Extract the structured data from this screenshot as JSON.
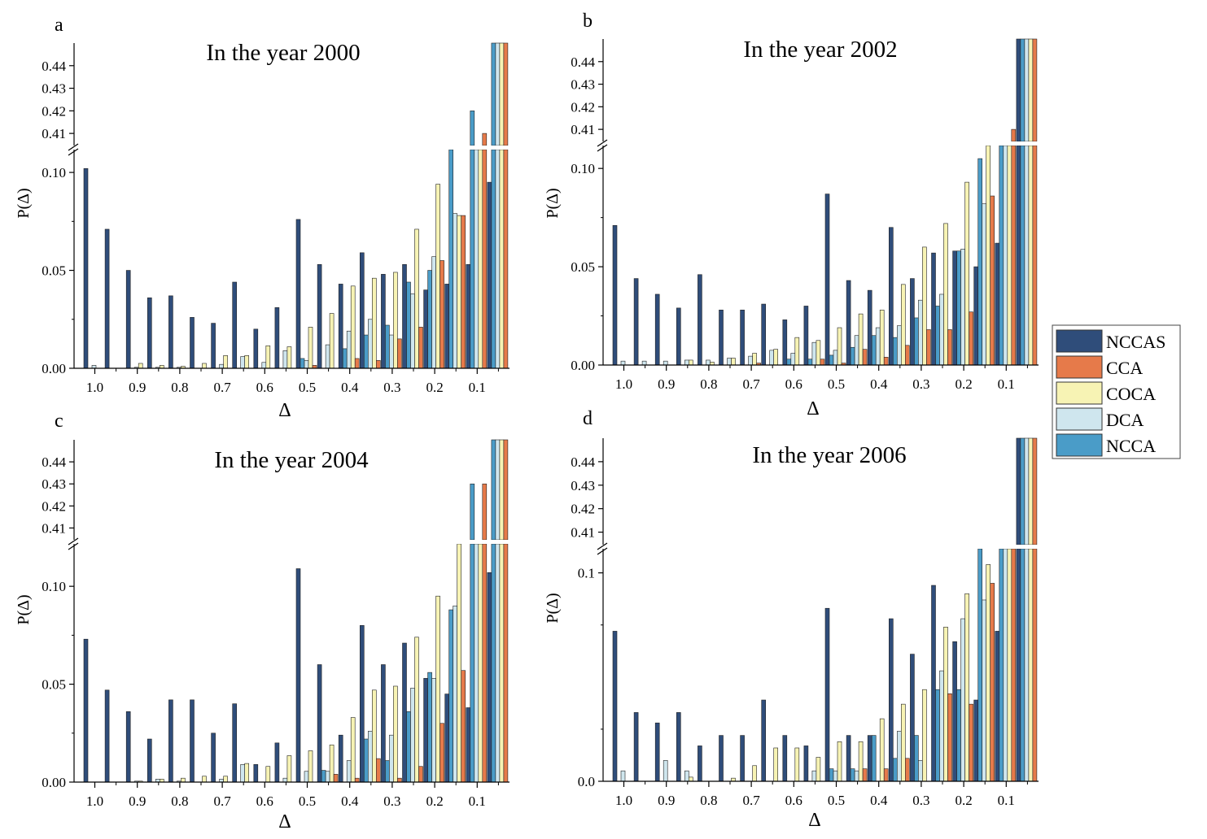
{
  "colors": {
    "NCCAS": "#2f4d7a",
    "CCA": "#e67a4a",
    "COCA": "#f7f3b4",
    "DCA": "#cfe6ee",
    "NCCA": "#4a9cc8"
  },
  "legend": [
    "NCCAS",
    "CCA",
    "COCA",
    "DCA",
    "NCCA"
  ],
  "chart_data": [
    {
      "type": "bar",
      "panel": "a",
      "title": "In the year 2000",
      "xlabel": "Δ",
      "ylabel": "P(Δ)",
      "x_tick_labels": [
        "1.0",
        "0.9",
        "0.8",
        "0.7",
        "0.6",
        "0.5",
        "0.4",
        "0.3",
        "0.2",
        "0.1"
      ],
      "y_ticks_lower": [
        "0.00",
        "0.05",
        "0.10"
      ],
      "y_ticks_upper": [
        "0.41",
        "0.42",
        "0.43",
        "0.44"
      ],
      "ylim_lower": [
        0,
        0.11
      ],
      "ylim_upper": [
        0.405,
        0.45
      ],
      "y_break": true,
      "categories": [
        1.0,
        0.95,
        0.9,
        0.85,
        0.8,
        0.75,
        0.7,
        0.65,
        0.6,
        0.55,
        0.5,
        0.45,
        0.4,
        0.35,
        0.3,
        0.25,
        0.2,
        0.15,
        0.1,
        0.05
      ],
      "series": [
        {
          "name": "NCCAS",
          "values": [
            0.102,
            0.071,
            0.05,
            0.036,
            0.037,
            0.026,
            0.023,
            0.044,
            0.02,
            0.031,
            0.076,
            0.053,
            0.043,
            0.059,
            0.048,
            0.053,
            0.04,
            0.043,
            0.053,
            0.095
          ]
        },
        {
          "name": "NCCA",
          "values": [
            0,
            0,
            0,
            0,
            0,
            0,
            0,
            0,
            0,
            0,
            0.005,
            0,
            0.01,
            0.017,
            0.022,
            0.044,
            0.05,
            0.37,
            0.42,
            0.45
          ]
        },
        {
          "name": "DCA",
          "values": [
            0.0015,
            0,
            0.0005,
            0.0005,
            0.0005,
            0,
            0.002,
            0.006,
            0.003,
            0.009,
            0.004,
            0.012,
            0.019,
            0.025,
            0.017,
            0.038,
            0.057,
            0.079,
            0.3,
            0.45
          ]
        },
        {
          "name": "COCA",
          "values": [
            0,
            0,
            0.0025,
            0.0015,
            0.001,
            0.0025,
            0.0065,
            0.0065,
            0.0115,
            0.011,
            0.021,
            0.028,
            0.042,
            0.046,
            0.049,
            0.071,
            0.094,
            0.078,
            0.35,
            0.45
          ]
        },
        {
          "name": "CCA",
          "values": [
            0,
            0,
            0,
            0,
            0,
            0,
            0,
            0,
            0,
            0,
            0.0015,
            0,
            0.005,
            0.004,
            0.015,
            0.021,
            0.055,
            0.078,
            0.41,
            0.45
          ]
        }
      ]
    },
    {
      "type": "bar",
      "panel": "b",
      "title": "In the year 2002",
      "xlabel": "Δ",
      "ylabel": "P(Δ)",
      "x_tick_labels": [
        "1.0",
        "0.9",
        "0.8",
        "0.7",
        "0.6",
        "0.5",
        "0.4",
        "0.3",
        "0.2",
        "0.1"
      ],
      "y_ticks_lower": [
        "0.00",
        "0.05",
        "0.10"
      ],
      "y_ticks_upper": [
        "0.41",
        "0.42",
        "0.43",
        "0.44"
      ],
      "ylim_lower": [
        0,
        0.11
      ],
      "ylim_upper": [
        0.405,
        0.45
      ],
      "y_break": true,
      "categories": [
        1.0,
        0.95,
        0.9,
        0.85,
        0.8,
        0.75,
        0.7,
        0.65,
        0.6,
        0.55,
        0.5,
        0.45,
        0.4,
        0.35,
        0.3,
        0.25,
        0.2,
        0.15,
        0.1,
        0.05
      ],
      "series": [
        {
          "name": "NCCAS",
          "values": [
            0.071,
            0.044,
            0.036,
            0.029,
            0.046,
            0.028,
            0.028,
            0.031,
            0.023,
            0.03,
            0.087,
            0.043,
            0.038,
            0.07,
            0.044,
            0.057,
            0.058,
            0.05,
            0.062,
            0.45
          ]
        },
        {
          "name": "NCCA",
          "values": [
            0,
            0,
            0,
            0,
            0,
            0,
            0,
            0,
            0.003,
            0.003,
            0.005,
            0.009,
            0.015,
            0.014,
            0.024,
            0.03,
            0.058,
            0.105,
            0.3,
            0.45
          ]
        },
        {
          "name": "DCA",
          "values": [
            0.002,
            0.002,
            0.002,
            0.0025,
            0.0025,
            0.0035,
            0.0045,
            0.0075,
            0.006,
            0.0115,
            0.0075,
            0.015,
            0.019,
            0.02,
            0.033,
            0.036,
            0.059,
            0.082,
            0.3,
            0.45
          ]
        },
        {
          "name": "COCA",
          "values": [
            0,
            0,
            0,
            0.0025,
            0.0015,
            0.0035,
            0.006,
            0.008,
            0.014,
            0.0125,
            0.019,
            0.026,
            0.028,
            0.041,
            0.06,
            0.072,
            0.093,
            0.3,
            0.4,
            0.45
          ]
        },
        {
          "name": "CCA",
          "values": [
            0,
            0,
            0,
            0,
            0,
            0,
            0.001,
            0,
            0,
            0.003,
            0.001,
            0.008,
            0.004,
            0.01,
            0.018,
            0.018,
            0.027,
            0.086,
            0.41,
            0.45
          ]
        }
      ]
    },
    {
      "type": "bar",
      "panel": "c",
      "title": "In the year 2004",
      "xlabel": "Δ",
      "ylabel": "P(Δ)",
      "x_tick_labels": [
        "1.0",
        "0.9",
        "0.8",
        "0.7",
        "0.6",
        "0.5",
        "0.4",
        "0.3",
        "0.2",
        "0.1"
      ],
      "y_ticks_lower": [
        "0.00",
        "0.05",
        "0.10"
      ],
      "y_ticks_upper": [
        "0.41",
        "0.42",
        "0.43",
        "0.44"
      ],
      "ylim_lower": [
        0,
        0.12
      ],
      "ylim_upper": [
        0.405,
        0.45
      ],
      "y_break": true,
      "categories": [
        1.0,
        0.95,
        0.9,
        0.85,
        0.8,
        0.75,
        0.7,
        0.65,
        0.6,
        0.55,
        0.5,
        0.45,
        0.4,
        0.35,
        0.3,
        0.25,
        0.2,
        0.15,
        0.1,
        0.05
      ],
      "series": [
        {
          "name": "NCCAS",
          "values": [
            0.073,
            0.047,
            0.036,
            0.022,
            0.042,
            0.042,
            0.025,
            0.04,
            0.009,
            0.02,
            0.109,
            0.06,
            0.024,
            0.08,
            0.06,
            0.071,
            0.053,
            0.045,
            0.038,
            0.107
          ]
        },
        {
          "name": "NCCA",
          "values": [
            0,
            0,
            0,
            0,
            0,
            0,
            0,
            0,
            0,
            0,
            0,
            0.006,
            0,
            0.022,
            0.011,
            0.036,
            0.056,
            0.088,
            0.43,
            0.45
          ]
        },
        {
          "name": "DCA",
          "values": [
            0,
            0,
            0.0005,
            0.0015,
            0.0005,
            0,
            0.0015,
            0.009,
            0,
            0.002,
            0.0055,
            0.0055,
            0.011,
            0.026,
            0.024,
            0.048,
            0.053,
            0.09,
            0.3,
            0.45
          ]
        },
        {
          "name": "COCA",
          "values": [
            0,
            0,
            0.0005,
            0.0015,
            0.002,
            0.003,
            0.003,
            0.0095,
            0.008,
            0.0135,
            0.016,
            0.019,
            0.033,
            0.047,
            0.049,
            0.074,
            0.095,
            0.3,
            0.35,
            0.45
          ]
        },
        {
          "name": "CCA",
          "values": [
            0,
            0,
            0,
            0,
            0,
            0,
            0,
            0,
            0,
            0,
            0,
            0.004,
            0.002,
            0.012,
            0.002,
            0.008,
            0.03,
            0.057,
            0.43,
            0.45
          ]
        }
      ]
    },
    {
      "type": "bar",
      "panel": "d",
      "title": "In the year 2006",
      "xlabel": "Δ",
      "ylabel": "P(Δ)",
      "x_tick_labels": [
        "1.0",
        "0.9",
        "0.8",
        "0.7",
        "0.6",
        "0.5",
        "0.4",
        "0.3",
        "0.2",
        "0.1"
      ],
      "y_ticks_lower": [
        "0.0",
        "0.1"
      ],
      "y_ticks_upper": [
        "0.41",
        "0.42",
        "0.43",
        "0.44"
      ],
      "ylim_lower": [
        0,
        0.11
      ],
      "ylim_upper": [
        0.405,
        0.45
      ],
      "y_break": true,
      "categories": [
        1.0,
        0.95,
        0.9,
        0.85,
        0.8,
        0.75,
        0.7,
        0.65,
        0.6,
        0.55,
        0.5,
        0.45,
        0.4,
        0.35,
        0.3,
        0.25,
        0.2,
        0.15,
        0.1,
        0.05
      ],
      "series": [
        {
          "name": "NCCAS",
          "values": [
            0.072,
            0.033,
            0.028,
            0.033,
            0.017,
            0.022,
            0.022,
            0.039,
            0.022,
            0.017,
            0.083,
            0.022,
            0.022,
            0.078,
            0.061,
            0.094,
            0.067,
            0.039,
            0.072,
            0.45
          ]
        },
        {
          "name": "NCCA",
          "values": [
            0,
            0,
            0,
            0,
            0,
            0,
            0,
            0,
            0,
            0,
            0.006,
            0.006,
            0.022,
            0.011,
            0.022,
            0.044,
            0.044,
            0.3,
            0.4,
            0.45
          ]
        },
        {
          "name": "DCA",
          "values": [
            0.005,
            0,
            0.01,
            0.005,
            0,
            0,
            0,
            0,
            0,
            0.005,
            0.005,
            0.005,
            0,
            0.024,
            0.01,
            0.053,
            0.078,
            0.087,
            0.3,
            0.45
          ]
        },
        {
          "name": "COCA",
          "values": [
            0,
            0,
            0,
            0.002,
            0,
            0.0015,
            0.0075,
            0.016,
            0.016,
            0.0115,
            0.019,
            0.019,
            0.03,
            0.037,
            0.044,
            0.074,
            0.09,
            0.104,
            0.3,
            0.45
          ]
        },
        {
          "name": "CCA",
          "values": [
            0,
            0,
            0,
            0,
            0,
            0,
            0,
            0,
            0,
            0,
            0,
            0.006,
            0.006,
            0.011,
            0,
            0.042,
            0.037,
            0.095,
            0.4,
            0.45
          ]
        }
      ]
    }
  ]
}
